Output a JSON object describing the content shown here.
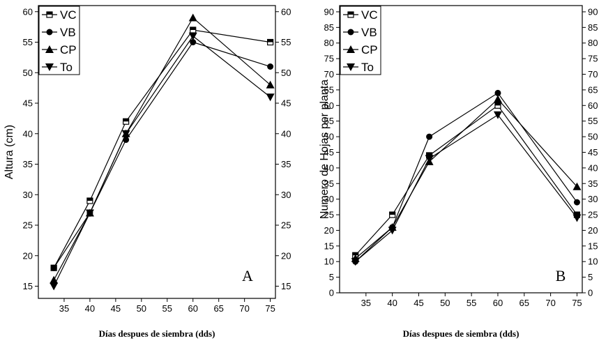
{
  "chart_data": [
    {
      "type": "line",
      "panel_letter": "A",
      "xlabel": "Días despues de siembra (dds)",
      "ylabel": "Altura (cm)",
      "x": [
        33,
        40,
        47,
        60,
        75
      ],
      "xlim": [
        30,
        76
      ],
      "ylim": [
        13,
        61
      ],
      "xticks": [
        35,
        40,
        45,
        50,
        55,
        60,
        65,
        70,
        75
      ],
      "yticks": [
        15,
        20,
        25,
        30,
        35,
        40,
        45,
        50,
        55,
        60
      ],
      "legend_position": "top-left",
      "right_axis_ticks": true,
      "series": [
        {
          "name": "VC",
          "marker": "half-square",
          "values": [
            18,
            29,
            42,
            57,
            55
          ]
        },
        {
          "name": "VB",
          "marker": "circle",
          "values": [
            18,
            27,
            39,
            55,
            51
          ]
        },
        {
          "name": "CP",
          "marker": "triangle-up",
          "values": [
            16,
            27,
            40,
            59,
            48
          ]
        },
        {
          "name": "To",
          "marker": "triangle-down",
          "values": [
            15,
            27,
            40,
            56,
            46
          ]
        }
      ]
    },
    {
      "type": "line",
      "panel_letter": "B",
      "xlabel": "Días despues de siembra (dds)",
      "ylabel": "Numero de Hojas por planta",
      "x": [
        33,
        40,
        47,
        60,
        75
      ],
      "xlim": [
        30,
        76
      ],
      "ylim": [
        0,
        92
      ],
      "xticks": [
        35,
        40,
        45,
        50,
        55,
        60,
        65,
        70,
        75
      ],
      "yticks": [
        0,
        5,
        10,
        15,
        20,
        25,
        30,
        35,
        40,
        45,
        50,
        55,
        60,
        65,
        70,
        75,
        80,
        85,
        90
      ],
      "legend_position": "top-left",
      "right_axis_ticks": true,
      "series": [
        {
          "name": "VC",
          "marker": "half-square",
          "values": [
            12,
            25,
            44,
            60,
            25
          ]
        },
        {
          "name": "VB",
          "marker": "circle",
          "values": [
            10,
            21,
            50,
            64,
            29
          ]
        },
        {
          "name": "CP",
          "marker": "triangle-up",
          "values": [
            11,
            21,
            42,
            62,
            34
          ]
        },
        {
          "name": "To",
          "marker": "triangle-down",
          "values": [
            10,
            20,
            43,
            57,
            24
          ]
        }
      ]
    }
  ]
}
